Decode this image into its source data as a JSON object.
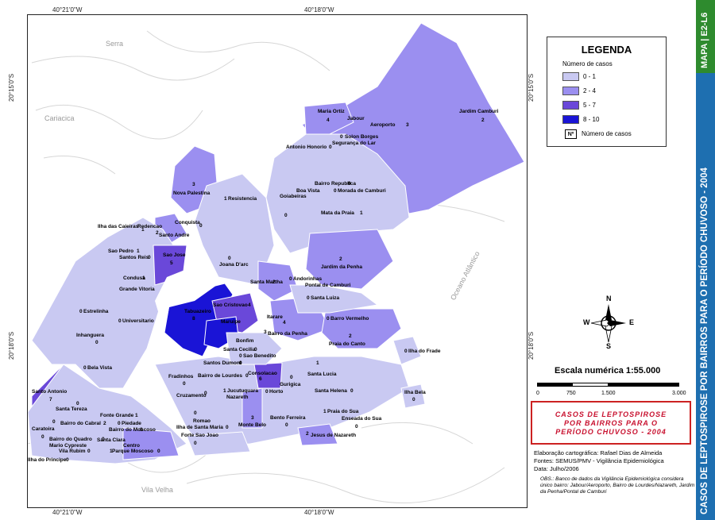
{
  "coords": {
    "top_left": "40°21'0\"W",
    "top_right": "40°18'0\"W",
    "bottom_left": "40°21'0\"W",
    "bottom_right": "40°18'0\"W",
    "left_upper": "20°15'0\"S",
    "left_lower": "20°18'0\"S",
    "right_upper": "20°15'0\"S",
    "right_lower": "20°18'0\"S"
  },
  "geo_labels": {
    "serra": "Serra",
    "cariacica": "Cariacica",
    "vila_velha": "Vila Velha",
    "oceano": "Oceano Atlântico"
  },
  "colors": {
    "class_0_1": "#c9c9f2",
    "class_2_4": "#9b8ff0",
    "class_5_7": "#6a48d9",
    "class_8_10": "#1a14d6"
  },
  "neighborhoods": [
    {
      "name": "Maria Ortiz",
      "count": "4"
    },
    {
      "name": "Jabour",
      "count": ""
    },
    {
      "name": "Aeroporto",
      "count": "3"
    },
    {
      "name": "Jardim Camburi",
      "count": "2"
    },
    {
      "name": "Solon Borges",
      "count": "0"
    },
    {
      "name": "Segurança do Lar",
      "count": ""
    },
    {
      "name": "Antonio Honorio",
      "count": "0"
    },
    {
      "name": "Nova Palestina",
      "count": "3"
    },
    {
      "name": "Resistencia",
      "count": "1"
    },
    {
      "name": "Bairro Republica",
      "count": "0"
    },
    {
      "name": "Boa Vista",
      "count": "0"
    },
    {
      "name": "Morada de Camburi",
      "count": "0"
    },
    {
      "name": "Goiabeiras",
      "count": "0"
    },
    {
      "name": "Mata da Praia",
      "count": "1"
    },
    {
      "name": "Ilha das Caieiras",
      "count": "1"
    },
    {
      "name": "Redencao",
      "count": "2"
    },
    {
      "name": "Conquista",
      "count": "0"
    },
    {
      "name": "Santo Andre",
      "count": ""
    },
    {
      "name": "Sao Pedro",
      "count": "1"
    },
    {
      "name": "Santos Reis",
      "count": "0"
    },
    {
      "name": "Sao Jose",
      "count": "5"
    },
    {
      "name": "Joana D'arc",
      "count": "0"
    },
    {
      "name": "Jardim da Penha",
      "count": "2"
    },
    {
      "name": "Condusa",
      "count": "1"
    },
    {
      "name": "Grande Vitoria",
      "count": ""
    },
    {
      "name": "Santa Martha",
      "count": "2"
    },
    {
      "name": "Andorinhas",
      "count": "0"
    },
    {
      "name": "Pontal de Camburi",
      "count": ""
    },
    {
      "name": "Santa Luiza",
      "count": "0"
    },
    {
      "name": "Estrelinha",
      "count": "0"
    },
    {
      "name": "Universitario",
      "count": "0"
    },
    {
      "name": "Tabuazeiro",
      "count": "8"
    },
    {
      "name": "Sao Cristovao",
      "count": "4"
    },
    {
      "name": "Maruipe",
      "count": ""
    },
    {
      "name": "Itarare",
      "count": "4"
    },
    {
      "name": "Barro Vermelho",
      "count": "0"
    },
    {
      "name": "Bairro da Penha",
      "count": "3"
    },
    {
      "name": "Praia do Canto",
      "count": "2"
    },
    {
      "name": "Inhanguera",
      "count": "0"
    },
    {
      "name": "Bonfim",
      "count": ""
    },
    {
      "name": "Santa Cecilia",
      "count": "0"
    },
    {
      "name": "Sao Benedito",
      "count": "0"
    },
    {
      "name": "Ilha do Frade",
      "count": "0"
    },
    {
      "name": "Santos Dumont",
      "count": "0"
    },
    {
      "name": "Bela Vista",
      "count": "0"
    },
    {
      "name": "Fradinhos",
      "count": "0"
    },
    {
      "name": "Bairro de Lourdes",
      "count": "0"
    },
    {
      "name": "Consolacao",
      "count": "6"
    },
    {
      "name": "Santa Lucia",
      "count": "1"
    },
    {
      "name": "Gurigica",
      "count": "0"
    },
    {
      "name": "Santo Antonio",
      "count": "7"
    },
    {
      "name": "Cruzamento",
      "count": "0"
    },
    {
      "name": "Jucutuquara",
      "count": "1"
    },
    {
      "name": "Nazareth",
      "count": ""
    },
    {
      "name": "Horto",
      "count": "0"
    },
    {
      "name": "Santa Helena",
      "count": "0"
    },
    {
      "name": "Ilha Bela",
      "count": "0"
    },
    {
      "name": "Santa Tereza",
      "count": "0"
    },
    {
      "name": "Fonte Grande",
      "count": "1"
    },
    {
      "name": "Romao",
      "count": "0"
    },
    {
      "name": "Praia do Sua",
      "count": "1"
    },
    {
      "name": "Bento Ferreira",
      "count": "0"
    },
    {
      "name": "Caratoira",
      "count": "0"
    },
    {
      "name": "Bairro do Cabral",
      "count": "2"
    },
    {
      "name": "Piedade",
      "count": "0"
    },
    {
      "name": "Bairro do Moscoso",
      "count": "0"
    },
    {
      "name": "Ilha de Santa Maria",
      "count": "0"
    },
    {
      "name": "Monte Belo",
      "count": "3"
    },
    {
      "name": "Enseada do Sua",
      "count": "0"
    },
    {
      "name": "Bairro do Quadro",
      "count": "0"
    },
    {
      "name": "Santa Clara",
      "count": "0"
    },
    {
      "name": "Forte Sao Joao",
      "count": "0"
    },
    {
      "name": "Jesus de Nazareth",
      "count": "2"
    },
    {
      "name": "Mario Cypreste",
      "count": ""
    },
    {
      "name": "Vila Rubim",
      "count": "0"
    },
    {
      "name": "Centro",
      "count": "1"
    },
    {
      "name": "Parque Moscoso",
      "count": "0"
    },
    {
      "name": "Ilha do Principe",
      "count": "0"
    }
  ],
  "legend": {
    "title": "LEGENDA",
    "subtitle": "Número de casos",
    "classes": [
      "0 - 1",
      "2 - 4",
      "5 - 7",
      "8 - 10"
    ],
    "np_symbol": "Nº",
    "np_label": "Número de casos"
  },
  "compass": {
    "n": "N",
    "s": "S",
    "e": "E",
    "w": "W"
  },
  "scale": {
    "title": "Escala numérica  1:55.000",
    "ticks": [
      "0",
      "750",
      "1.500",
      "3.000"
    ]
  },
  "title_box": {
    "line1": "CASOS DE LEPTOSPIROSE",
    "line2": "POR BAIRROS PARA O",
    "line3": "PERÍODO CHUVOSO - 2004"
  },
  "info": {
    "author": "Elaboração cartográfica: Rafael Dias de Almeida",
    "sources": "Fontes: SEMUS/PMV - Vigilância Epidemiológica",
    "date": "Data: Julho/2006",
    "obs": "OBS.: Banco de dados da Vigilância Epidemiológica considera único bairro: Jabour/Aeroporto, Bairro de Lourdes/Nazareth, Jardim da Penha/Pontal de Camburi"
  },
  "side": {
    "map_id": "MAPA | E2-L6",
    "title": "CASOS DE LEPTOSPIROSE POR BAIRROS PARA O PERÍODO CHUVOSO - 2004"
  }
}
